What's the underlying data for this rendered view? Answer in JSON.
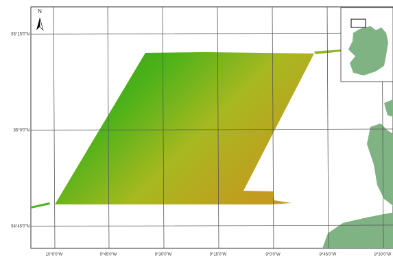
{
  "north_label": "N",
  "latitude_labels": [
    "55°15'0\"N",
    "55°0'0\"N",
    "54°45'0\"N"
  ],
  "longitude_labels": [
    "10°0'0\"W",
    "9°45'0\"W",
    "9°30'0\"W",
    "9°15'0\"W",
    "9°0'0\"W",
    "8°45'0\"W",
    "8°30'0\"W"
  ]
}
